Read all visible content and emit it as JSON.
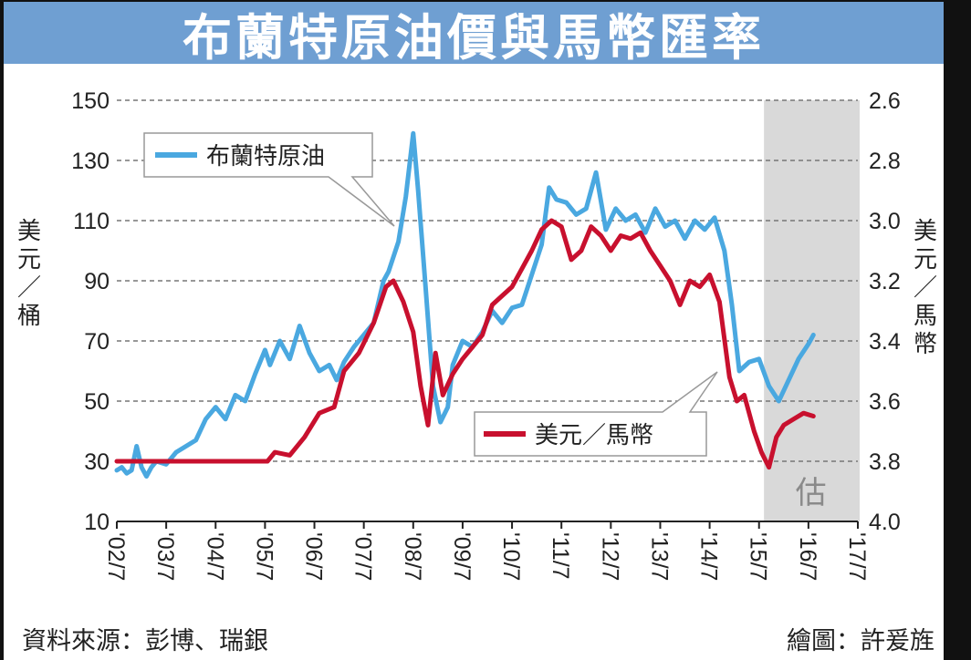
{
  "chart_data": {
    "type": "line",
    "title": "布蘭特原油價與馬幣匯率",
    "x_ticks": [
      "'02/7",
      "'03/7",
      "'04/7",
      "'05/7",
      "'06/7",
      "'07/7",
      "'08/7",
      "'09/7",
      "'10/7",
      "'11/7",
      "'12/7",
      "'13/7",
      "'14/7",
      "'15/7",
      "'16/7",
      "'17/7"
    ],
    "left_axis": {
      "unit_label": "美元/桶",
      "range": [
        10,
        150
      ],
      "ticks": [
        150,
        130,
        110,
        90,
        70,
        50,
        30,
        10
      ]
    },
    "right_axis": {
      "unit_label": "美元/馬幣",
      "range": [
        4.0,
        2.6
      ],
      "inverted": true,
      "ticks": [
        "2.6",
        "2.8",
        "3.0",
        "3.2",
        "3.4",
        "3.6",
        "3.8",
        "4.0"
      ]
    },
    "grid": "horizontal-dashed",
    "estimate_region": {
      "label": "估",
      "from": 2015.6,
      "to": 2017.0
    },
    "series": [
      {
        "name": "布蘭特原油",
        "axis": "left",
        "color": "#4aa8e0",
        "x": [
          2002.5,
          2002.6,
          2002.7,
          2002.8,
          2002.9,
          2003.0,
          2003.1,
          2003.2,
          2003.3,
          2003.5,
          2003.7,
          2003.9,
          2004.1,
          2004.3,
          2004.5,
          2004.7,
          2004.9,
          2005.1,
          2005.3,
          2005.5,
          2005.6,
          2005.8,
          2006.0,
          2006.2,
          2006.4,
          2006.6,
          2006.8,
          2006.95,
          2007.1,
          2007.3,
          2007.5,
          2007.7,
          2007.9,
          2008.0,
          2008.2,
          2008.35,
          2008.5,
          2008.6,
          2008.75,
          2008.9,
          2009.05,
          2009.2,
          2009.3,
          2009.5,
          2009.7,
          2009.9,
          2010.1,
          2010.3,
          2010.5,
          2010.7,
          2010.9,
          2011.1,
          2011.25,
          2011.4,
          2011.6,
          2011.8,
          2012.0,
          2012.2,
          2012.4,
          2012.6,
          2012.8,
          2013.0,
          2013.2,
          2013.4,
          2013.6,
          2013.8,
          2014.0,
          2014.2,
          2014.4,
          2014.6,
          2014.8,
          2014.95,
          2015.1,
          2015.3,
          2015.5,
          2015.7,
          2015.9,
          2016.1,
          2016.3,
          2016.5,
          2016.6
        ],
        "y": [
          27,
          28,
          26,
          27,
          35,
          28,
          25,
          28,
          30,
          29,
          33,
          35,
          37,
          44,
          48,
          44,
          52,
          50,
          59,
          67,
          62,
          70,
          64,
          75,
          66,
          60,
          62,
          57,
          63,
          68,
          72,
          76,
          90,
          93,
          103,
          118,
          139,
          120,
          88,
          55,
          43,
          48,
          62,
          70,
          68,
          73,
          80,
          76,
          81,
          82,
          92,
          102,
          121,
          117,
          116,
          112,
          114,
          126,
          107,
          114,
          110,
          112,
          106,
          114,
          108,
          110,
          104,
          110,
          107,
          111,
          100,
          82,
          60,
          63,
          64,
          55,
          50,
          57,
          64,
          69,
          72
        ]
      },
      {
        "name": "美元/馬幣",
        "axis": "right",
        "color": "#c8102e",
        "x": [
          2002.5,
          2003.0,
          2004.0,
          2005.0,
          2005.55,
          2005.7,
          2006.0,
          2006.3,
          2006.6,
          2006.9,
          2007.1,
          2007.4,
          2007.7,
          2007.95,
          2008.1,
          2008.3,
          2008.5,
          2008.65,
          2008.8,
          2008.95,
          2009.1,
          2009.3,
          2009.5,
          2009.7,
          2009.9,
          2010.1,
          2010.3,
          2010.5,
          2010.7,
          2010.9,
          2011.1,
          2011.3,
          2011.5,
          2011.7,
          2011.9,
          2012.1,
          2012.3,
          2012.5,
          2012.7,
          2012.9,
          2013.1,
          2013.3,
          2013.5,
          2013.7,
          2013.9,
          2014.1,
          2014.3,
          2014.5,
          2014.7,
          2014.9,
          2015.05,
          2015.2,
          2015.4,
          2015.55,
          2015.7,
          2015.85,
          2016.0,
          2016.2,
          2016.4,
          2016.6
        ],
        "y": [
          3.8,
          3.8,
          3.8,
          3.8,
          3.8,
          3.77,
          3.78,
          3.72,
          3.64,
          3.62,
          3.5,
          3.44,
          3.34,
          3.22,
          3.2,
          3.27,
          3.37,
          3.55,
          3.68,
          3.44,
          3.58,
          3.51,
          3.46,
          3.42,
          3.38,
          3.28,
          3.25,
          3.22,
          3.16,
          3.1,
          3.03,
          3.0,
          3.02,
          3.13,
          3.1,
          3.02,
          3.05,
          3.1,
          3.05,
          3.06,
          3.04,
          3.1,
          3.15,
          3.2,
          3.28,
          3.2,
          3.22,
          3.18,
          3.27,
          3.52,
          3.6,
          3.58,
          3.7,
          3.77,
          3.82,
          3.72,
          3.68,
          3.66,
          3.64,
          3.65
        ]
      }
    ]
  },
  "footer": {
    "source": "資料來源：彭博、瑞銀",
    "credit": "繪圖：許爰旌"
  }
}
